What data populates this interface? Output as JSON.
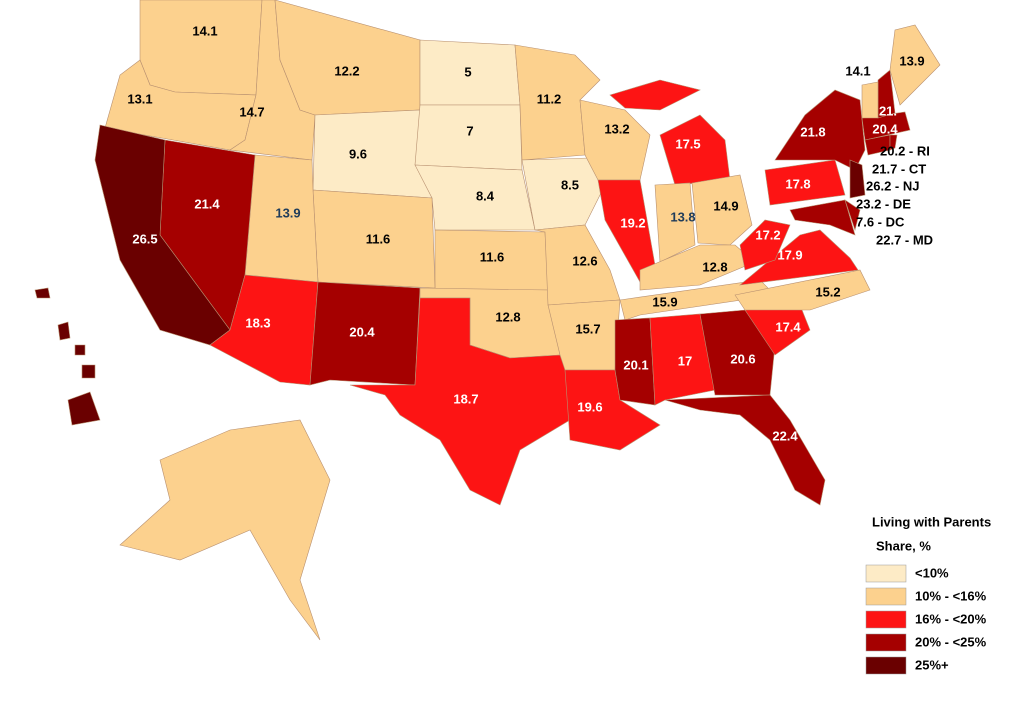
{
  "map": {
    "regions": [
      {
        "label": 14.1,
        "color": "#fcd18e"
      },
      {
        "label": 13.1,
        "color": "#fcd18e"
      },
      {
        "label": 14.7,
        "color": "#fcd18e"
      },
      {
        "label": 12.2,
        "color": "#fcd18e"
      },
      {
        "label": 9.6,
        "color": "#fdebc6"
      },
      {
        "label": 5,
        "color": "#fdebc6"
      },
      {
        "label": 7,
        "color": "#fdebc6"
      },
      {
        "label": 8.4,
        "color": "#fdebc6"
      },
      {
        "label": 11.6,
        "color": "#fcd18e"
      },
      {
        "label": 11.6,
        "color": "#fcd18e"
      },
      {
        "label": 13.9,
        "color": "#fcd18e"
      },
      {
        "label": 21.4,
        "color": "#a50000"
      },
      {
        "label": 26.5,
        "color": "#6a0000"
      },
      {
        "label": 18.3,
        "color": "#fd1414"
      },
      {
        "label": 20.4,
        "color": "#a50000"
      },
      {
        "label": 12.8,
        "color": "#fcd18e"
      },
      {
        "label": 18.7,
        "color": "#fd1414"
      },
      {
        "label": 11.2,
        "color": "#fcd18e"
      },
      {
        "label": 8.5,
        "color": "#fdebc6"
      },
      {
        "label": 12.6,
        "color": "#fcd18e"
      },
      {
        "label": 15.7,
        "color": "#fcd18e"
      },
      {
        "label": 19.6,
        "color": "#fd1414"
      },
      {
        "label": 13.2,
        "color": "#fcd18e"
      },
      {
        "label": 19.2,
        "color": "#fd1414"
      },
      {
        "label": 17.5,
        "color": "#fd1414"
      },
      {
        "label": 13.8,
        "color": "#fcd18e"
      },
      {
        "label": 14.9,
        "color": "#fcd18e"
      },
      {
        "label": 12.8,
        "color": "#fcd18e"
      },
      {
        "label": 15.9,
        "color": "#fcd18e"
      },
      {
        "label": 20.1,
        "color": "#a50000"
      },
      {
        "label": 17,
        "color": "#fd1414"
      },
      {
        "label": 20.6,
        "color": "#a50000"
      },
      {
        "label": 22.4,
        "color": "#a50000"
      },
      {
        "label": 17.4,
        "color": "#fd1414"
      },
      {
        "label": 15.2,
        "color": "#fcd18e"
      },
      {
        "label": 17.9,
        "color": "#fd1414"
      },
      {
        "label": 17.2,
        "color": "#fd1414"
      },
      {
        "label": 17.8,
        "color": "#fd1414"
      },
      {
        "label": 21.8,
        "color": "#a50000"
      },
      {
        "label": 20.4,
        "color": "#a50000"
      },
      {
        "label": "21.",
        "color": "#a50000"
      },
      {
        "label": 13.9,
        "color": "#fcd18e"
      },
      {
        "label": 14.1,
        "color": "#fcd18e"
      },
      {
        "color": "#a50000"
      },
      {
        "color": "#a50000"
      },
      {
        "color": "#6a0000"
      },
      {
        "color": "#a50000"
      },
      {
        "color": "#a50000"
      },
      {
        "color": "#fcd18e"
      },
      {
        "color": "#6a0000"
      }
    ],
    "callouts": [
      "20.2 - RI",
      "21.7 - CT",
      "26.2 - NJ",
      "23.2 - DE",
      "7.6 - DC",
      "22.7 - MD"
    ]
  },
  "legend": {
    "title": "Living with Parents",
    "subtitle": "Share, %",
    "items": [
      {
        "label": "<10%",
        "color": "#fdebc6"
      },
      {
        "label": "10% - <16%",
        "color": "#fcd18e"
      },
      {
        "label": "16% - <20%",
        "color": "#fd1414"
      },
      {
        "label": "20% - <25%",
        "color": "#a50000"
      },
      {
        "label": "25%+",
        "color": "#6a0000"
      }
    ]
  }
}
